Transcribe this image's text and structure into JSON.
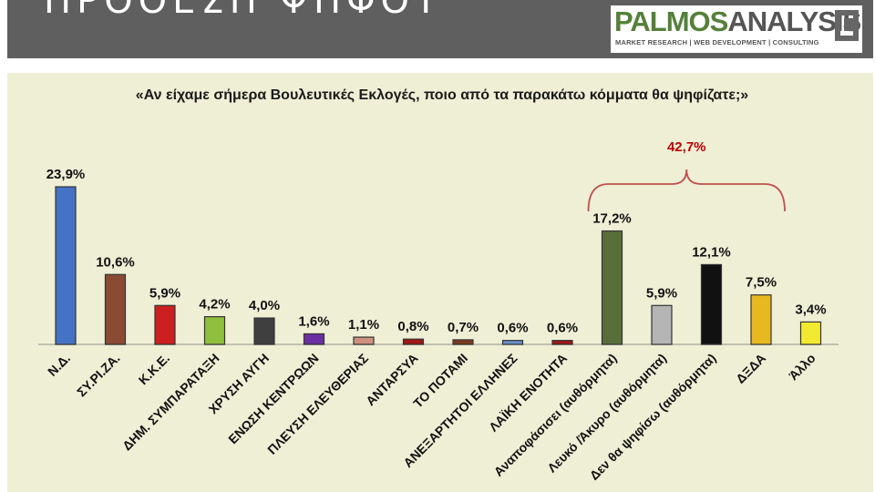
{
  "header": {
    "title": "ΠΡΟΘΕΣΗ ΨΗΦΟΥ"
  },
  "logo": {
    "name_part1": "PALMOS",
    "name_part2": "ANALYSIS",
    "tagline": "MARKET RESEARCH | WEB DEVELOPMENT | CONSULTING"
  },
  "question": "«Αν είχαμε σήμερα Βουλευτικές Εκλογές, ποιο από τα παρακάτω κόμματα θα ψηφίζατε;»",
  "bracket_label": "42,7%",
  "colors": {
    "header_bg": "#5f5f5f",
    "panel_bg": "#efefd6",
    "bracket": "#c0504d",
    "bracket_text": "#c00000"
  },
  "chart_data": {
    "type": "bar",
    "categories": [
      "Ν.Δ.",
      "ΣΥ.ΡΙ.ΖΑ.",
      "Κ.Κ.Ε.",
      "ΔΗΜ. ΣΥΜΠΑΡΑΤΑΞΗ",
      "ΧΡΥΣΗ ΑΥΓΗ",
      "ΕΝΩΣΗ ΚΕΝΤΡΩΩΝ",
      "ΠΛΕΥΣΗ ΕΛΕΥΘΕΡΙΑΣ",
      "ΑΝΤΑΡΣΥΑ",
      "ΤΟ ΠΟΤΑΜΙ",
      "ΑΝΕΞΑΡΤΗΤΟΙ ΕΛΛΗΝΕΣ",
      "ΛΑΪΚΗ ΕΝΟΤΗΤΑ",
      "Αναποφάσισει (αυθόρμητα)",
      "Λευκό /Άκυρο (αυθόρμητα)",
      "Δεν θα ψηφίσω (αυθόρμητα)",
      "ΔΞΔΑ",
      "Άλλο"
    ],
    "values": [
      23.9,
      10.6,
      5.9,
      4.2,
      4.0,
      1.6,
      1.1,
      0.8,
      0.7,
      0.6,
      0.6,
      17.2,
      5.9,
      12.1,
      7.5,
      3.4
    ],
    "labels": [
      "23,9%",
      "10,6%",
      "5,9%",
      "4,2%",
      "4,0%",
      "1,6%",
      "1,1%",
      "0,8%",
      "0,7%",
      "0,6%",
      "0,6%",
      "17,2%",
      "5,9%",
      "12,1%",
      "7,5%",
      "3,4%"
    ],
    "bar_colors": [
      "#4472c4",
      "#8b4a32",
      "#cc1f1f",
      "#8fbf3f",
      "#3f3f3f",
      "#6a2fa0",
      "#d09080",
      "#a01818",
      "#7a3a20",
      "#6a8fc8",
      "#a01818",
      "#5a6e3a",
      "#b5b5b5",
      "#111111",
      "#e8b820",
      "#f2ea30"
    ],
    "bracket_categories": [
      "Αναποφάσισει (αυθόρμητα)",
      "ΔΞΔΑ"
    ],
    "ylim": [
      0,
      26
    ],
    "grid": false,
    "legend": "none"
  }
}
